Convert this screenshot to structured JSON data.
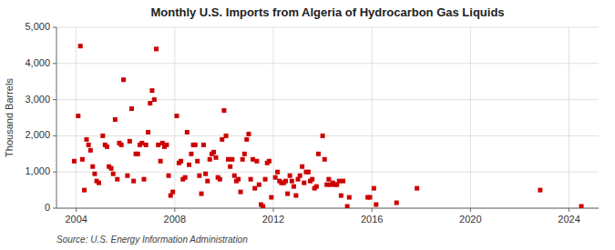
{
  "chart_data": {
    "type": "scatter",
    "title": "Monthly U.S. Imports from Algeria of Hydrocarbon Gas Liquids",
    "y_label": "Thousand Barrels",
    "annotations": [
      "Source: U.S. Energy Information Administration"
    ],
    "color": "#cc0000",
    "marker": "square",
    "grid": true,
    "xlim": [
      2003.2,
      2025.2
    ],
    "ylim": [
      0,
      5000
    ],
    "xticks": [
      2004,
      2008,
      2012,
      2016,
      2020,
      2024
    ],
    "yticks": [
      0,
      {
        "value": 1000,
        "label": "1,000"
      },
      {
        "value": 2000,
        "label": "2,000"
      },
      {
        "value": 3000,
        "label": "3,000"
      },
      {
        "value": 4000,
        "label": "4,000"
      },
      {
        "value": 5000,
        "label": "5,000"
      }
    ],
    "x": [
      2003.92,
      2004.08,
      2004.17,
      2004.25,
      2004.33,
      2004.42,
      2004.5,
      2004.58,
      2004.67,
      2004.75,
      2004.83,
      2004.92,
      2005.08,
      2005.17,
      2005.25,
      2005.33,
      2005.42,
      2005.5,
      2005.58,
      2005.67,
      2005.75,
      2005.83,
      2005.92,
      2006.08,
      2006.17,
      2006.25,
      2006.33,
      2006.42,
      2006.5,
      2006.58,
      2006.67,
      2006.75,
      2006.83,
      2006.92,
      2007.0,
      2007.08,
      2007.17,
      2007.25,
      2007.33,
      2007.42,
      2007.5,
      2007.58,
      2007.67,
      2007.75,
      2007.83,
      2007.92,
      2008.08,
      2008.17,
      2008.25,
      2008.33,
      2008.42,
      2008.5,
      2008.58,
      2008.67,
      2008.75,
      2008.83,
      2008.92,
      2009.0,
      2009.08,
      2009.17,
      2009.25,
      2009.33,
      2009.42,
      2009.5,
      2009.58,
      2009.67,
      2009.75,
      2009.83,
      2009.92,
      2010.0,
      2010.08,
      2010.17,
      2010.25,
      2010.33,
      2010.42,
      2010.5,
      2010.58,
      2010.67,
      2010.75,
      2010.83,
      2010.92,
      2011.0,
      2011.08,
      2011.17,
      2011.25,
      2011.33,
      2011.42,
      2011.5,
      2011.58,
      2011.67,
      2011.75,
      2011.83,
      2011.92,
      2012.08,
      2012.17,
      2012.25,
      2012.33,
      2012.42,
      2012.5,
      2012.58,
      2012.67,
      2012.75,
      2012.83,
      2012.92,
      2013.0,
      2013.08,
      2013.17,
      2013.25,
      2013.33,
      2013.42,
      2013.5,
      2013.58,
      2013.67,
      2013.75,
      2013.83,
      2014.0,
      2014.08,
      2014.17,
      2014.25,
      2014.33,
      2014.42,
      2014.5,
      2014.58,
      2014.67,
      2014.75,
      2014.83,
      2015.0,
      2015.08,
      2015.83,
      2015.92,
      2016.08,
      2016.17,
      2017.0,
      2017.83,
      2022.83,
      2024.5
    ],
    "values": [
      1300,
      2550,
      4480,
      1350,
      500,
      1900,
      1750,
      1600,
      1150,
      950,
      750,
      700,
      2000,
      1750,
      1700,
      1150,
      1100,
      950,
      2450,
      800,
      1800,
      1750,
      3550,
      900,
      1850,
      2750,
      750,
      1500,
      1500,
      1750,
      1800,
      800,
      1750,
      2100,
      2900,
      3250,
      3000,
      4400,
      1750,
      1300,
      1800,
      1700,
      1750,
      900,
      350,
      450,
      2550,
      1250,
      1300,
      800,
      850,
      2100,
      1200,
      1500,
      1750,
      1750,
      1300,
      900,
      400,
      1750,
      950,
      750,
      1350,
      1500,
      1550,
      1400,
      850,
      800,
      1900,
      2700,
      2000,
      1350,
      1150,
      1350,
      900,
      750,
      800,
      450,
      1350,
      1500,
      1900,
      2050,
      800,
      1350,
      550,
      1300,
      650,
      100,
      50,
      800,
      1250,
      1300,
      300,
      850,
      1000,
      750,
      700,
      700,
      750,
      400,
      900,
      750,
      600,
      350,
      800,
      900,
      1150,
      700,
      1000,
      1000,
      750,
      800,
      550,
      600,
      1500,
      2000,
      1350,
      650,
      800,
      650,
      700,
      650,
      650,
      750,
      350,
      750,
      50,
      300,
      300,
      300,
      550,
      100,
      150,
      550,
      500,
      50
    ]
  }
}
